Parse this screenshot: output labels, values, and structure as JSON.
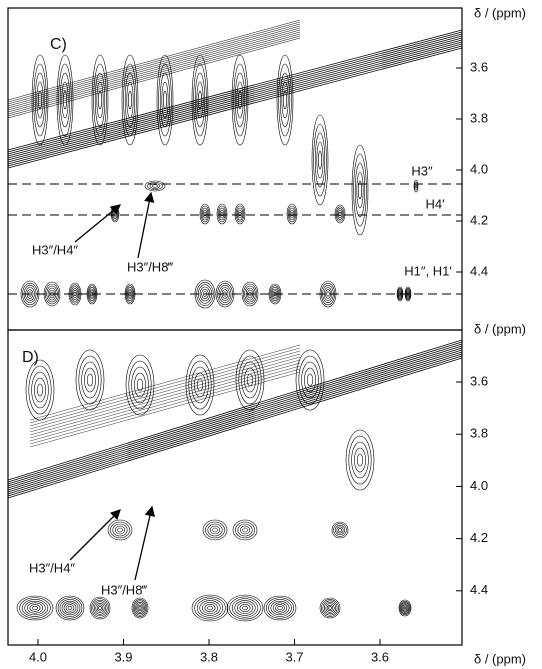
{
  "panels": [
    {
      "label": "C)",
      "axis_label": "δ / (ppm)",
      "yticks": [
        {
          "value": 3.6,
          "label": "3.6"
        },
        {
          "value": 3.8,
          "label": "3.8"
        },
        {
          "value": 4.0,
          "label": "4.0"
        },
        {
          "value": 4.2,
          "label": "4.2"
        },
        {
          "value": 4.4,
          "label": "4.4"
        }
      ],
      "annotations": [
        "H3″/H4″",
        "H3″/H8‴",
        "H3″",
        "H4′",
        "H1″, H1′"
      ]
    },
    {
      "label": "D)",
      "axis_label": "δ / (ppm)",
      "yticks": [
        {
          "value": 3.6,
          "label": "3.6"
        },
        {
          "value": 3.8,
          "label": "3.8"
        },
        {
          "value": 4.0,
          "label": "4.0"
        },
        {
          "value": 4.2,
          "label": "4.2"
        },
        {
          "value": 4.4,
          "label": "4.4"
        }
      ],
      "annotations": [
        "H3″/H4″",
        "H3″/H8‴"
      ]
    }
  ],
  "x_axis": {
    "label": "δ / (ppm)",
    "xticks": [
      {
        "value": 4.0,
        "label": "4.0"
      },
      {
        "value": 3.9,
        "label": "3.9"
      },
      {
        "value": 3.8,
        "label": "3.8"
      },
      {
        "value": 3.7,
        "label": "3.7"
      },
      {
        "value": 3.6,
        "label": "3.6"
      }
    ]
  }
}
